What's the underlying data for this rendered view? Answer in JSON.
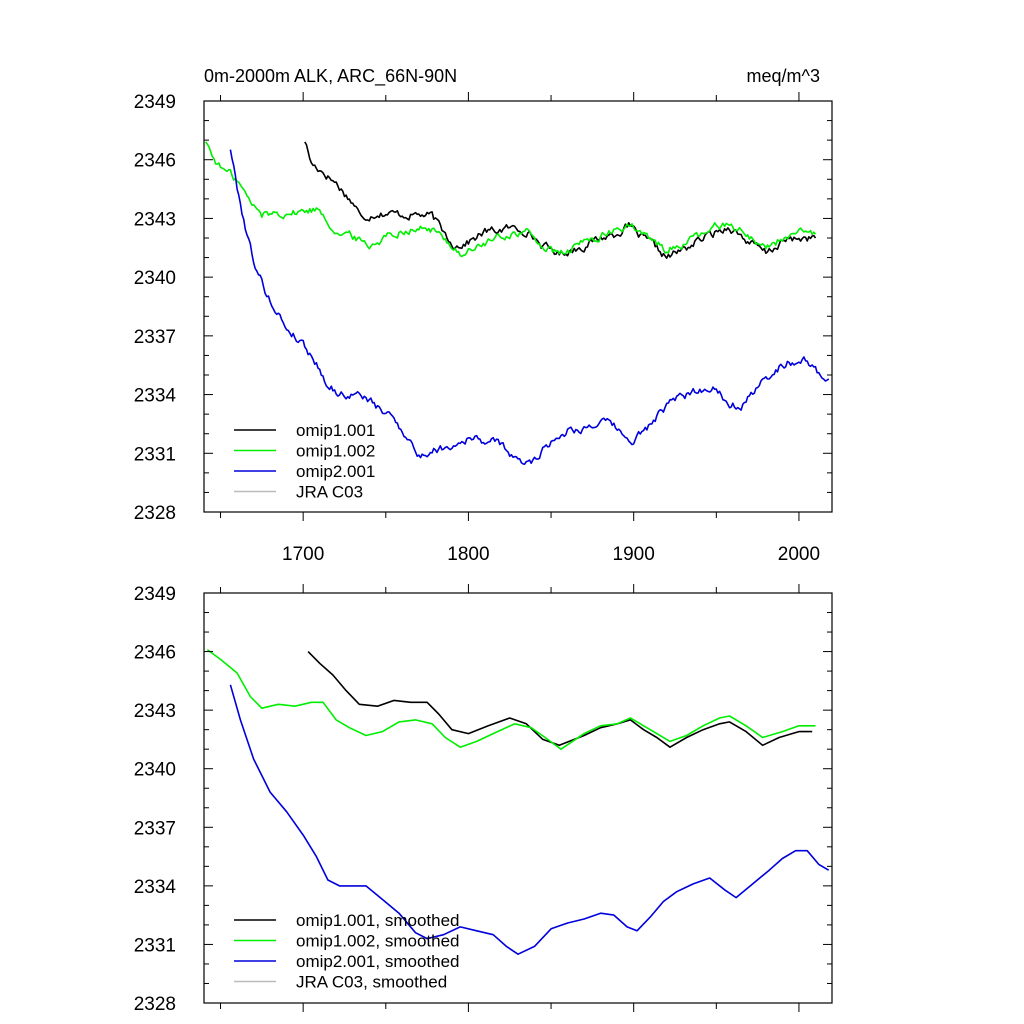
{
  "header": {
    "title": "0m-2000m ALK, ARC_66N-90N",
    "units": "meq/m^3"
  },
  "chart_data": [
    {
      "type": "line",
      "title": "0m-2000m ALK, ARC_66N-90N",
      "units": "meq/m^3",
      "xlim": [
        1640,
        2020
      ],
      "ylim": [
        2328,
        2349
      ],
      "xticks": [
        1700,
        1800,
        1900,
        2000
      ],
      "xtick_labels": [
        "1700",
        "1800",
        "1900",
        "2000"
      ],
      "yticks": [
        2328,
        2331,
        2334,
        2337,
        2340,
        2343,
        2346,
        2349
      ],
      "ytick_labels": [
        "2328",
        "2331",
        "2334",
        "2337",
        "2340",
        "2343",
        "2346",
        "2349"
      ],
      "legend_position": "bottom-left",
      "noise": 0.35,
      "series": [
        {
          "name": "omip1.001",
          "color": "#000000",
          "points": [
            [
              1701,
              2347.0
            ],
            [
              1705,
              2345.8
            ],
            [
              1712,
              2345.4
            ],
            [
              1720,
              2344.8
            ],
            [
              1725,
              2344.3
            ],
            [
              1732,
              2343.6
            ],
            [
              1735,
              2343.0
            ],
            [
              1745,
              2343.3
            ],
            [
              1760,
              2343.2
            ],
            [
              1770,
              2343.2
            ],
            [
              1778,
              2343.1
            ],
            [
              1785,
              2342.3
            ],
            [
              1792,
              2341.6
            ],
            [
              1800,
              2341.8
            ],
            [
              1810,
              2342.3
            ],
            [
              1825,
              2342.5
            ],
            [
              1835,
              2342.4
            ],
            [
              1845,
              2341.6
            ],
            [
              1855,
              2341.2
            ],
            [
              1870,
              2341.6
            ],
            [
              1880,
              2342.0
            ],
            [
              1888,
              2342.2
            ],
            [
              1897,
              2342.6
            ],
            [
              1905,
              2342.0
            ],
            [
              1912,
              2341.6
            ],
            [
              1920,
              2341.0
            ],
            [
              1930,
              2341.4
            ],
            [
              1940,
              2341.9
            ],
            [
              1950,
              2342.3
            ],
            [
              1958,
              2342.6
            ],
            [
              1968,
              2341.9
            ],
            [
              1980,
              2341.2
            ],
            [
              1990,
              2341.8
            ],
            [
              2000,
              2342.0
            ],
            [
              2010,
              2342.0
            ]
          ]
        },
        {
          "name": "omip1.002",
          "color": "#00ee00",
          "points": [
            [
              1641,
              2347.0
            ],
            [
              1645,
              2346.2
            ],
            [
              1650,
              2345.6
            ],
            [
              1660,
              2345.0
            ],
            [
              1668,
              2343.8
            ],
            [
              1675,
              2343.2
            ],
            [
              1685,
              2343.3
            ],
            [
              1695,
              2343.3
            ],
            [
              1710,
              2343.5
            ],
            [
              1720,
              2342.3
            ],
            [
              1732,
              2342.0
            ],
            [
              1740,
              2341.6
            ],
            [
              1750,
              2342.1
            ],
            [
              1760,
              2342.4
            ],
            [
              1770,
              2342.5
            ],
            [
              1778,
              2342.4
            ],
            [
              1788,
              2341.8
            ],
            [
              1795,
              2341.2
            ],
            [
              1800,
              2341.3
            ],
            [
              1812,
              2341.8
            ],
            [
              1825,
              2342.2
            ],
            [
              1835,
              2342.3
            ],
            [
              1845,
              2341.6
            ],
            [
              1855,
              2341.1
            ],
            [
              1870,
              2341.8
            ],
            [
              1880,
              2342.1
            ],
            [
              1888,
              2342.3
            ],
            [
              1897,
              2342.7
            ],
            [
              1905,
              2342.2
            ],
            [
              1912,
              2341.8
            ],
            [
              1920,
              2341.4
            ],
            [
              1930,
              2341.7
            ],
            [
              1940,
              2342.1
            ],
            [
              1950,
              2342.6
            ],
            [
              1958,
              2342.8
            ],
            [
              1968,
              2342.2
            ],
            [
              1980,
              2341.5
            ],
            [
              1990,
              2342.0
            ],
            [
              2000,
              2342.2
            ],
            [
              2010,
              2342.2
            ]
          ]
        },
        {
          "name": "omip2.001",
          "color": "#0000dd",
          "points": [
            [
              1656,
              2346.6
            ],
            [
              1660,
              2344.6
            ],
            [
              1666,
              2342.2
            ],
            [
              1672,
              2340.3
            ],
            [
              1680,
              2338.8
            ],
            [
              1690,
              2337.4
            ],
            [
              1700,
              2336.6
            ],
            [
              1708,
              2335.6
            ],
            [
              1715,
              2334.5
            ],
            [
              1722,
              2334.0
            ],
            [
              1730,
              2334.0
            ],
            [
              1738,
              2333.9
            ],
            [
              1745,
              2333.3
            ],
            [
              1755,
              2332.8
            ],
            [
              1765,
              2331.6
            ],
            [
              1770,
              2330.8
            ],
            [
              1780,
              2331.2
            ],
            [
              1790,
              2331.4
            ],
            [
              1800,
              2331.8
            ],
            [
              1812,
              2331.6
            ],
            [
              1820,
              2331.5
            ],
            [
              1830,
              2330.5
            ],
            [
              1838,
              2330.6
            ],
            [
              1850,
              2331.6
            ],
            [
              1860,
              2332.2
            ],
            [
              1870,
              2332.3
            ],
            [
              1880,
              2332.6
            ],
            [
              1888,
              2332.4
            ],
            [
              1898,
              2331.5
            ],
            [
              1908,
              2332.3
            ],
            [
              1918,
              2333.2
            ],
            [
              1926,
              2333.8
            ],
            [
              1938,
              2334.2
            ],
            [
              1948,
              2334.4
            ],
            [
              1958,
              2333.6
            ],
            [
              1965,
              2333.4
            ],
            [
              1975,
              2334.3
            ],
            [
              1985,
              2335.3
            ],
            [
              1993,
              2335.6
            ],
            [
              2000,
              2335.8
            ],
            [
              2005,
              2335.7
            ],
            [
              2012,
              2335.0
            ],
            [
              2018,
              2334.8
            ]
          ]
        },
        {
          "name": "JRA C03",
          "color": "#bbbbbb",
          "points": []
        }
      ]
    },
    {
      "type": "line",
      "title": "",
      "xlim": [
        1640,
        2020
      ],
      "ylim": [
        2328,
        2349
      ],
      "yticks": [
        2328,
        2331,
        2334,
        2337,
        2340,
        2343,
        2346,
        2349
      ],
      "ytick_labels": [
        "2328",
        "2331",
        "2334",
        "2337",
        "2340",
        "2343",
        "2346",
        "2349"
      ],
      "legend_position": "bottom-left",
      "noise": 0,
      "series": [
        {
          "name": "omip1.001, smoothed",
          "color": "#000000",
          "points": [
            [
              1703,
              2346.0
            ],
            [
              1710,
              2345.4
            ],
            [
              1718,
              2344.8
            ],
            [
              1726,
              2344.0
            ],
            [
              1734,
              2343.3
            ],
            [
              1745,
              2343.2
            ],
            [
              1755,
              2343.5
            ],
            [
              1765,
              2343.4
            ],
            [
              1775,
              2343.4
            ],
            [
              1782,
              2342.8
            ],
            [
              1790,
              2342.0
            ],
            [
              1800,
              2341.8
            ],
            [
              1812,
              2342.2
            ],
            [
              1825,
              2342.6
            ],
            [
              1835,
              2342.3
            ],
            [
              1845,
              2341.5
            ],
            [
              1855,
              2341.2
            ],
            [
              1870,
              2341.7
            ],
            [
              1880,
              2342.1
            ],
            [
              1890,
              2342.3
            ],
            [
              1898,
              2342.5
            ],
            [
              1906,
              2342.0
            ],
            [
              1914,
              2341.6
            ],
            [
              1922,
              2341.1
            ],
            [
              1932,
              2341.6
            ],
            [
              1942,
              2342.0
            ],
            [
              1952,
              2342.3
            ],
            [
              1958,
              2342.4
            ],
            [
              1968,
              2341.9
            ],
            [
              1978,
              2341.2
            ],
            [
              1988,
              2341.6
            ],
            [
              2000,
              2341.9
            ],
            [
              2008,
              2341.9
            ]
          ]
        },
        {
          "name": "omip1.002, smoothed",
          "color": "#00ee00",
          "points": [
            [
              1642,
              2346.1
            ],
            [
              1650,
              2345.6
            ],
            [
              1660,
              2344.9
            ],
            [
              1668,
              2343.7
            ],
            [
              1675,
              2343.1
            ],
            [
              1685,
              2343.3
            ],
            [
              1695,
              2343.2
            ],
            [
              1705,
              2343.4
            ],
            [
              1712,
              2343.4
            ],
            [
              1720,
              2342.5
            ],
            [
              1728,
              2342.1
            ],
            [
              1738,
              2341.7
            ],
            [
              1748,
              2341.9
            ],
            [
              1758,
              2342.4
            ],
            [
              1768,
              2342.5
            ],
            [
              1778,
              2342.3
            ],
            [
              1786,
              2341.6
            ],
            [
              1795,
              2341.1
            ],
            [
              1805,
              2341.4
            ],
            [
              1815,
              2341.8
            ],
            [
              1828,
              2342.3
            ],
            [
              1838,
              2342.1
            ],
            [
              1848,
              2341.5
            ],
            [
              1856,
              2341.0
            ],
            [
              1870,
              2341.8
            ],
            [
              1880,
              2342.2
            ],
            [
              1890,
              2342.3
            ],
            [
              1898,
              2342.6
            ],
            [
              1906,
              2342.2
            ],
            [
              1914,
              2341.8
            ],
            [
              1922,
              2341.4
            ],
            [
              1932,
              2341.7
            ],
            [
              1942,
              2342.2
            ],
            [
              1952,
              2342.6
            ],
            [
              1958,
              2342.7
            ],
            [
              1968,
              2342.2
            ],
            [
              1978,
              2341.6
            ],
            [
              1990,
              2341.9
            ],
            [
              2000,
              2342.2
            ],
            [
              2010,
              2342.2
            ]
          ]
        },
        {
          "name": "omip2.001, smoothed",
          "color": "#0000dd",
          "points": [
            [
              1656,
              2344.3
            ],
            [
              1662,
              2342.5
            ],
            [
              1670,
              2340.5
            ],
            [
              1680,
              2338.8
            ],
            [
              1690,
              2337.8
            ],
            [
              1700,
              2336.6
            ],
            [
              1708,
              2335.5
            ],
            [
              1715,
              2334.3
            ],
            [
              1722,
              2334.0
            ],
            [
              1730,
              2334.0
            ],
            [
              1738,
              2334.0
            ],
            [
              1748,
              2333.3
            ],
            [
              1758,
              2332.6
            ],
            [
              1768,
              2331.6
            ],
            [
              1775,
              2331.3
            ],
            [
              1785,
              2331.5
            ],
            [
              1795,
              2331.9
            ],
            [
              1805,
              2331.7
            ],
            [
              1815,
              2331.5
            ],
            [
              1823,
              2330.9
            ],
            [
              1830,
              2330.5
            ],
            [
              1840,
              2330.9
            ],
            [
              1850,
              2331.8
            ],
            [
              1860,
              2332.1
            ],
            [
              1870,
              2332.3
            ],
            [
              1880,
              2332.6
            ],
            [
              1888,
              2332.5
            ],
            [
              1896,
              2331.9
            ],
            [
              1902,
              2331.7
            ],
            [
              1910,
              2332.4
            ],
            [
              1918,
              2333.2
            ],
            [
              1926,
              2333.7
            ],
            [
              1936,
              2334.1
            ],
            [
              1946,
              2334.4
            ],
            [
              1955,
              2333.8
            ],
            [
              1962,
              2333.4
            ],
            [
              1972,
              2334.1
            ],
            [
              1982,
              2334.8
            ],
            [
              1990,
              2335.4
            ],
            [
              1998,
              2335.8
            ],
            [
              2005,
              2335.8
            ],
            [
              2012,
              2335.1
            ],
            [
              2018,
              2334.8
            ]
          ]
        },
        {
          "name": "JRA C03, smoothed",
          "color": "#bbbbbb",
          "points": []
        }
      ]
    }
  ]
}
